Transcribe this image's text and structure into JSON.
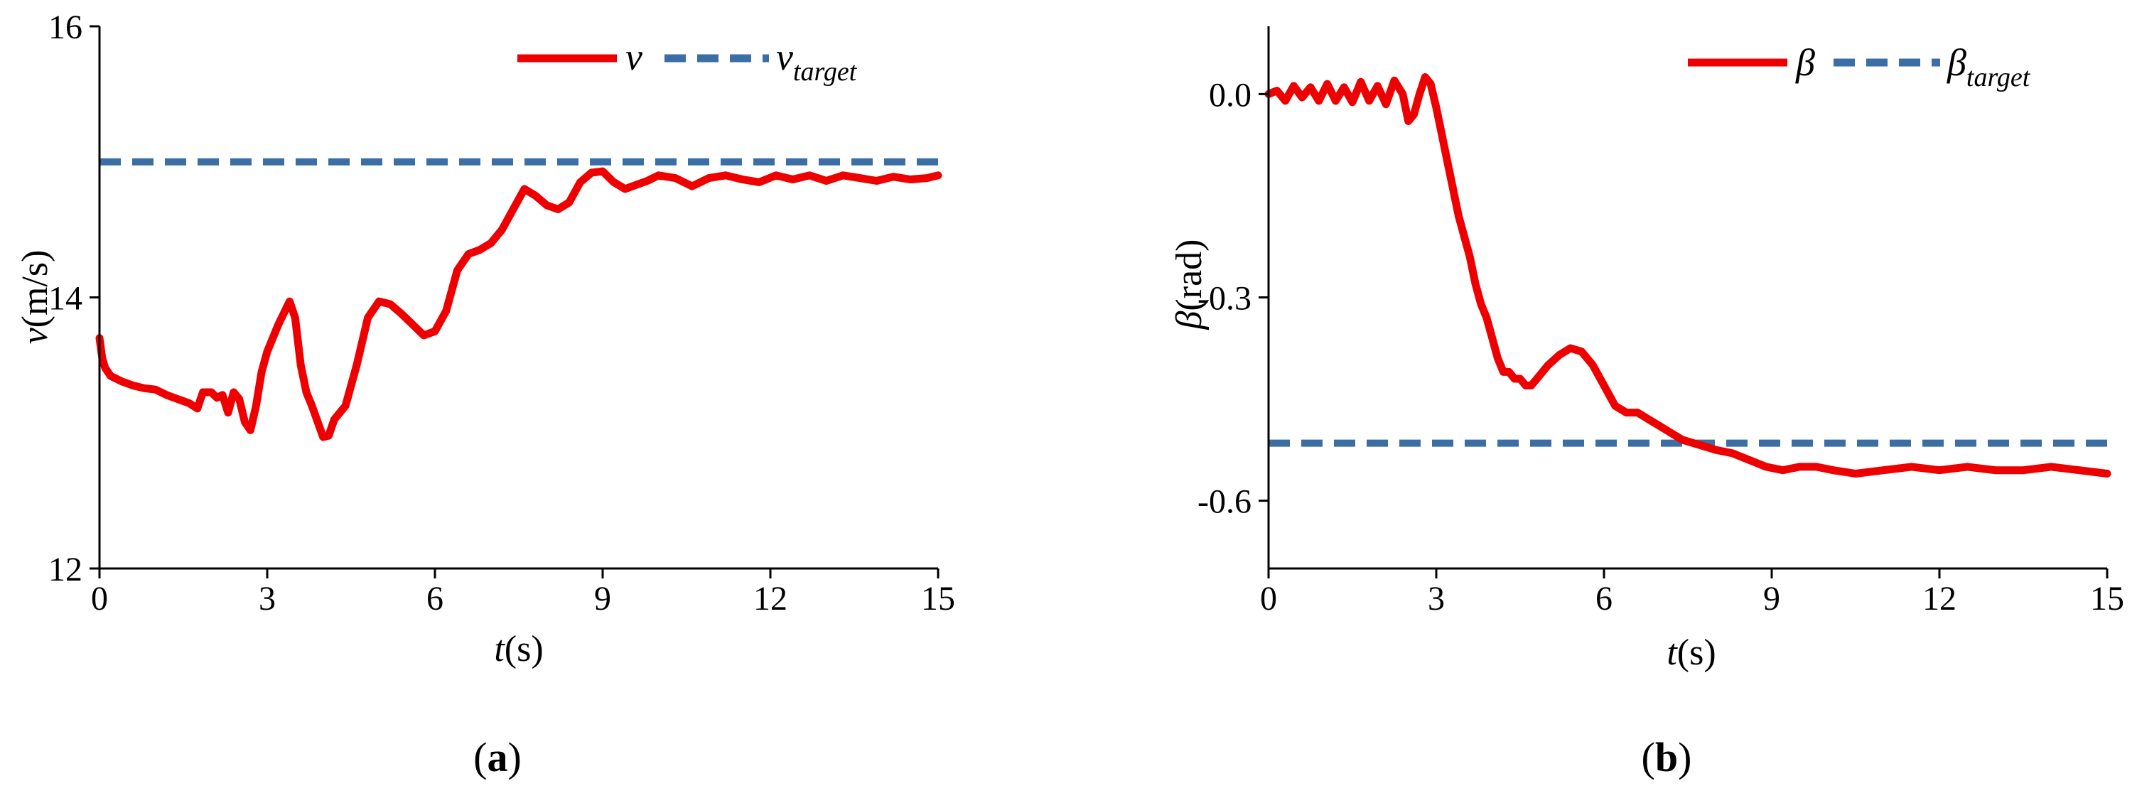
{
  "colors": {
    "actual_line": "#ee0000",
    "target_line": "#3a6ea5",
    "axis": "#000000"
  },
  "panels": [
    {
      "caption_letter": "a",
      "xlabel_var": "t",
      "xlabel_unit": "(s)",
      "ylabel_var": "v",
      "ylabel_unit": "(m/s)",
      "legend_actual": "v",
      "legend_target_base": "v",
      "legend_target_sub": "target"
    },
    {
      "caption_letter": "b",
      "xlabel_var": "t",
      "xlabel_unit": "(s)",
      "ylabel_var": "β",
      "ylabel_unit": "(rad)",
      "legend_actual": "β",
      "legend_target_base": "β",
      "legend_target_sub": "target"
    }
  ],
  "chart_data": [
    {
      "type": "line",
      "xlim": [
        0,
        15
      ],
      "ylim": [
        12,
        16
      ],
      "xticks": [
        0,
        3,
        6,
        9,
        12,
        15
      ],
      "xtick_labels": [
        "0",
        "3",
        "6",
        "9",
        "12",
        "15"
      ],
      "yticks": [
        12,
        14,
        16
      ],
      "ytick_labels": [
        "12",
        "14",
        "16"
      ],
      "grid": false,
      "legend_position": "top-right",
      "series": [
        {
          "name": "v",
          "style": "solid",
          "x": [
            0.0,
            0.05,
            0.1,
            0.2,
            0.4,
            0.6,
            0.8,
            1.0,
            1.2,
            1.4,
            1.6,
            1.75,
            1.85,
            2.0,
            2.1,
            2.2,
            2.3,
            2.4,
            2.5,
            2.6,
            2.7,
            2.8,
            2.9,
            3.0,
            3.2,
            3.4,
            3.5,
            3.6,
            3.7,
            3.8,
            4.0,
            4.1,
            4.2,
            4.4,
            4.6,
            4.8,
            5.0,
            5.2,
            5.4,
            5.6,
            5.8,
            6.0,
            6.2,
            6.4,
            6.6,
            6.8,
            7.0,
            7.2,
            7.4,
            7.6,
            7.8,
            8.0,
            8.2,
            8.4,
            8.6,
            8.8,
            9.0,
            9.2,
            9.4,
            9.6,
            9.8,
            10.0,
            10.3,
            10.6,
            10.9,
            11.2,
            11.5,
            11.8,
            12.1,
            12.4,
            12.7,
            13.0,
            13.3,
            13.6,
            13.9,
            14.2,
            14.5,
            14.8,
            15.0
          ],
          "y": [
            13.7,
            13.55,
            13.48,
            13.42,
            13.38,
            13.35,
            13.33,
            13.32,
            13.28,
            13.25,
            13.22,
            13.18,
            13.3,
            13.3,
            13.26,
            13.28,
            13.15,
            13.3,
            13.25,
            13.08,
            13.02,
            13.2,
            13.45,
            13.6,
            13.8,
            13.97,
            13.85,
            13.5,
            13.3,
            13.2,
            12.97,
            12.98,
            13.1,
            13.2,
            13.5,
            13.85,
            13.97,
            13.95,
            13.88,
            13.8,
            13.72,
            13.75,
            13.9,
            14.2,
            14.32,
            14.35,
            14.4,
            14.5,
            14.65,
            14.8,
            14.75,
            14.68,
            14.65,
            14.7,
            14.85,
            14.92,
            14.93,
            14.85,
            14.8,
            14.83,
            14.86,
            14.9,
            14.88,
            14.82,
            14.88,
            14.9,
            14.87,
            14.85,
            14.9,
            14.87,
            14.9,
            14.86,
            14.9,
            14.88,
            14.86,
            14.89,
            14.87,
            14.88,
            14.9
          ]
        },
        {
          "name": "v_target",
          "style": "dashed",
          "x": [
            0,
            15
          ],
          "y": [
            15.0,
            15.0
          ]
        }
      ]
    },
    {
      "type": "line",
      "xlim": [
        0,
        15
      ],
      "ylim": [
        -0.7,
        0.1
      ],
      "xticks": [
        0,
        3,
        6,
        9,
        12,
        15
      ],
      "xtick_labels": [
        "0",
        "3",
        "6",
        "9",
        "12",
        "15"
      ],
      "yticks": [
        0.0,
        -0.3,
        -0.6
      ],
      "ytick_labels": [
        "0.0",
        "-0.3",
        "-0.6"
      ],
      "grid": false,
      "legend_position": "top-right",
      "series": [
        {
          "name": "β",
          "style": "solid",
          "x": [
            0.0,
            0.15,
            0.3,
            0.45,
            0.6,
            0.75,
            0.9,
            1.05,
            1.2,
            1.35,
            1.5,
            1.65,
            1.8,
            1.95,
            2.1,
            2.25,
            2.4,
            2.5,
            2.6,
            2.7,
            2.8,
            2.9,
            3.0,
            3.1,
            3.2,
            3.3,
            3.4,
            3.5,
            3.6,
            3.7,
            3.8,
            3.9,
            4.0,
            4.1,
            4.2,
            4.3,
            4.4,
            4.5,
            4.6,
            4.7,
            4.8,
            5.0,
            5.2,
            5.4,
            5.6,
            5.8,
            6.0,
            6.2,
            6.4,
            6.6,
            6.8,
            7.0,
            7.2,
            7.4,
            7.6,
            7.8,
            8.0,
            8.3,
            8.6,
            8.9,
            9.2,
            9.5,
            9.8,
            10.1,
            10.5,
            11.0,
            11.5,
            12.0,
            12.5,
            13.0,
            13.5,
            14.0,
            14.5,
            15.0
          ],
          "y": [
            0.0,
            0.005,
            -0.01,
            0.012,
            -0.005,
            0.01,
            -0.01,
            0.015,
            -0.01,
            0.01,
            -0.012,
            0.018,
            -0.01,
            0.012,
            -0.015,
            0.02,
            0.0,
            -0.04,
            -0.03,
            0.0,
            0.025,
            0.015,
            -0.02,
            -0.06,
            -0.1,
            -0.14,
            -0.18,
            -0.21,
            -0.24,
            -0.28,
            -0.31,
            -0.33,
            -0.36,
            -0.39,
            -0.41,
            -0.41,
            -0.42,
            -0.42,
            -0.43,
            -0.43,
            -0.42,
            -0.4,
            -0.385,
            -0.375,
            -0.38,
            -0.4,
            -0.43,
            -0.46,
            -0.47,
            -0.47,
            -0.48,
            -0.49,
            -0.5,
            -0.51,
            -0.515,
            -0.52,
            -0.525,
            -0.53,
            -0.54,
            -0.55,
            -0.555,
            -0.55,
            -0.55,
            -0.555,
            -0.56,
            -0.555,
            -0.55,
            -0.555,
            -0.55,
            -0.555,
            -0.555,
            -0.55,
            -0.555,
            -0.56
          ]
        },
        {
          "name": "β_target",
          "style": "dashed",
          "x": [
            0,
            15
          ],
          "y": [
            -0.515,
            -0.515
          ]
        }
      ]
    }
  ]
}
